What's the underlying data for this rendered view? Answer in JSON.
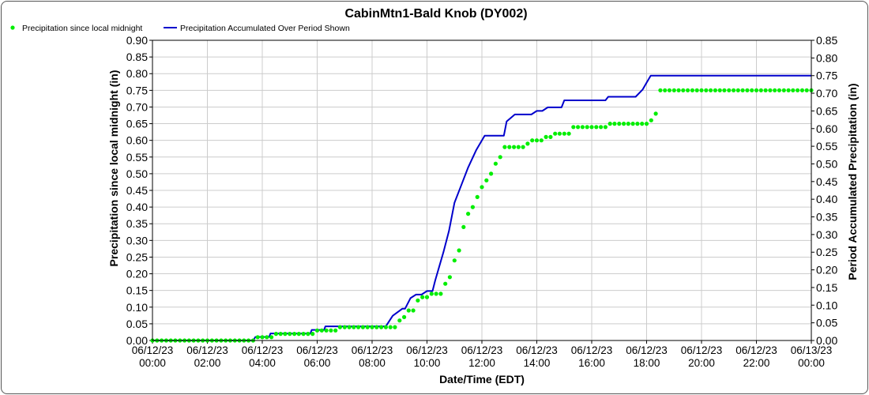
{
  "chart_data": {
    "type": "line",
    "title": "CabinMtn1-Bald Knob (DY002)",
    "xlabel": "Date/Time (EDT)",
    "ylabel_left": "Precipitation since local midnight (in)",
    "ylabel_right": "Period Accumulated Precipitation (in)",
    "x_unit": "hours since 06/12/23 00:00 (EDT)",
    "xlim": [
      0,
      24
    ],
    "ylim_left": [
      0,
      0.9
    ],
    "ylim_right": [
      0,
      0.85
    ],
    "left_ticks": [
      "0.00",
      "0.05",
      "0.10",
      "0.15",
      "0.20",
      "0.25",
      "0.30",
      "0.35",
      "0.40",
      "0.45",
      "0.50",
      "0.55",
      "0.60",
      "0.65",
      "0.70",
      "0.75",
      "0.80",
      "0.85",
      "0.90"
    ],
    "right_ticks": [
      "0.00",
      "0.05",
      "0.10",
      "0.15",
      "0.20",
      "0.25",
      "0.30",
      "0.35",
      "0.40",
      "0.45",
      "0.50",
      "0.55",
      "0.60",
      "0.65",
      "0.70",
      "0.75",
      "0.80",
      "0.85"
    ],
    "x_ticks": [
      {
        "h": 0,
        "date": "06/12/23",
        "time": "00:00"
      },
      {
        "h": 2,
        "date": "06/12/23",
        "time": "02:00"
      },
      {
        "h": 4,
        "date": "06/12/23",
        "time": "04:00"
      },
      {
        "h": 6,
        "date": "06/12/23",
        "time": "06:00"
      },
      {
        "h": 8,
        "date": "06/12/23",
        "time": "08:00"
      },
      {
        "h": 10,
        "date": "06/12/23",
        "time": "10:00"
      },
      {
        "h": 12,
        "date": "06/12/23",
        "time": "12:00"
      },
      {
        "h": 14,
        "date": "06/12/23",
        "time": "14:00"
      },
      {
        "h": 16,
        "date": "06/12/23",
        "time": "16:00"
      },
      {
        "h": 18,
        "date": "06/12/23",
        "time": "18:00"
      },
      {
        "h": 20,
        "date": "06/12/23",
        "time": "20:00"
      },
      {
        "h": 22,
        "date": "06/12/23",
        "time": "22:00"
      },
      {
        "h": 24,
        "date": "06/13/23",
        "time": "00:00"
      }
    ],
    "grid": true,
    "legend_position": "top-left",
    "series": [
      {
        "name": "Precipitation since local midnight",
        "style": "dots",
        "axis": "left",
        "color": "#00ee00",
        "x": [
          0,
          0.167,
          0.333,
          0.5,
          0.667,
          0.833,
          1,
          1.167,
          1.333,
          1.5,
          1.667,
          1.833,
          2,
          2.167,
          2.333,
          2.5,
          2.667,
          2.833,
          3,
          3.167,
          3.333,
          3.5,
          3.667,
          3.833,
          4,
          4.167,
          4.333,
          4.5,
          4.667,
          4.833,
          5,
          5.167,
          5.333,
          5.5,
          5.667,
          5.833,
          6,
          6.167,
          6.333,
          6.5,
          6.667,
          6.833,
          7,
          7.167,
          7.333,
          7.5,
          7.667,
          7.833,
          8,
          8.167,
          8.333,
          8.5,
          8.667,
          8.833,
          9,
          9.167,
          9.333,
          9.5,
          9.667,
          9.833,
          10,
          10.167,
          10.333,
          10.5,
          10.667,
          10.833,
          11,
          11.167,
          11.333,
          11.5,
          11.667,
          11.833,
          12,
          12.167,
          12.333,
          12.5,
          12.667,
          12.833,
          13,
          13.167,
          13.333,
          13.5,
          13.667,
          13.833,
          14,
          14.167,
          14.333,
          14.5,
          14.667,
          14.833,
          15,
          15.167,
          15.333,
          15.5,
          15.667,
          15.833,
          16,
          16.167,
          16.333,
          16.5,
          16.667,
          16.833,
          17,
          17.167,
          17.333,
          17.5,
          17.667,
          17.833,
          18,
          18.167,
          18.333,
          18.5,
          18.667,
          18.833,
          19,
          19.167,
          19.333,
          19.5,
          19.667,
          19.833,
          20,
          20.167,
          20.333,
          20.5,
          20.667,
          20.833,
          21,
          21.167,
          21.333,
          21.5,
          21.667,
          21.833,
          22,
          22.167,
          22.333,
          22.5,
          22.667,
          22.833,
          23,
          23.167,
          23.333,
          23.5,
          23.667,
          23.833,
          24
        ],
        "y": [
          0,
          0,
          0,
          0,
          0,
          0,
          0,
          0,
          0,
          0,
          0,
          0,
          0,
          0,
          0,
          0,
          0,
          0,
          0,
          0,
          0,
          0,
          0,
          0.01,
          0.01,
          0.01,
          0.01,
          0.02,
          0.02,
          0.02,
          0.02,
          0.02,
          0.02,
          0.02,
          0.02,
          0.02,
          0.03,
          0.03,
          0.03,
          0.03,
          0.03,
          0.04,
          0.04,
          0.04,
          0.04,
          0.04,
          0.04,
          0.04,
          0.04,
          0.04,
          0.04,
          0.04,
          0.04,
          0.04,
          0.06,
          0.07,
          0.09,
          0.09,
          0.12,
          0.13,
          0.13,
          0.14,
          0.14,
          0.14,
          0.17,
          0.19,
          0.24,
          0.27,
          0.34,
          0.38,
          0.4,
          0.43,
          0.46,
          0.48,
          0.5,
          0.53,
          0.55,
          0.58,
          0.58,
          0.58,
          0.58,
          0.58,
          0.59,
          0.6,
          0.6,
          0.6,
          0.61,
          0.61,
          0.62,
          0.62,
          0.62,
          0.62,
          0.64,
          0.64,
          0.64,
          0.64,
          0.64,
          0.64,
          0.64,
          0.64,
          0.65,
          0.65,
          0.65,
          0.65,
          0.65,
          0.65,
          0.65,
          0.65,
          0.65,
          0.66,
          0.68,
          0.75,
          0.75,
          0.75,
          0.75,
          0.75,
          0.75,
          0.75,
          0.75,
          0.75,
          0.75,
          0.75,
          0.75,
          0.75,
          0.75,
          0.75,
          0.75,
          0.75,
          0.75,
          0.75,
          0.75,
          0.75,
          0.75,
          0.75,
          0.75,
          0.75,
          0.75,
          0.75,
          0.75,
          0.75,
          0.75,
          0.75,
          0.75,
          0.75,
          0.75
        ]
      },
      {
        "name": "Precipitation Accumulated Over Period Shown",
        "style": "line",
        "axis": "right",
        "color": "#0000cc",
        "x": [
          0,
          3.67,
          3.75,
          4.25,
          4.3,
          5.75,
          5.8,
          6.25,
          6.3,
          8.5,
          8.75,
          9.1,
          9.2,
          9.4,
          9.6,
          9.8,
          10,
          10.2,
          10.3,
          10.6,
          10.8,
          11.0,
          11.2,
          11.5,
          11.8,
          12.1,
          12.2,
          12.8,
          12.9,
          13.2,
          13.3,
          13.8,
          14.0,
          14.2,
          14.4,
          14.9,
          15.0,
          16.5,
          16.6,
          17.6,
          17.85,
          18.0,
          18.15,
          24
        ],
        "y": [
          0,
          0,
          0.01,
          0.01,
          0.02,
          0.02,
          0.03,
          0.03,
          0.04,
          0.04,
          0.07,
          0.09,
          0.09,
          0.12,
          0.13,
          0.13,
          0.14,
          0.14,
          0.17,
          0.25,
          0.31,
          0.39,
          0.43,
          0.49,
          0.54,
          0.58,
          0.58,
          0.58,
          0.62,
          0.64,
          0.64,
          0.64,
          0.65,
          0.65,
          0.66,
          0.66,
          0.68,
          0.68,
          0.69,
          0.69,
          0.71,
          0.73,
          0.75,
          0.75
        ]
      }
    ]
  }
}
